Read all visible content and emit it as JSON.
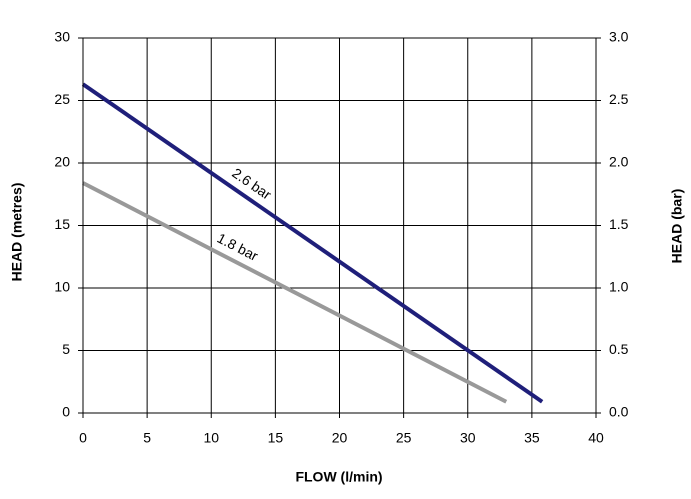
{
  "chart_data": {
    "type": "line",
    "xlabel": "FLOW (l/min)",
    "ylabel": "HEAD (metres)",
    "y2label": "HEAD (bar)",
    "xlim": [
      0,
      40
    ],
    "xticks": [
      0,
      5,
      10,
      15,
      20,
      25,
      30,
      35,
      40
    ],
    "ylim": [
      0,
      30
    ],
    "yticks": [
      0,
      5,
      10,
      15,
      20,
      25,
      30
    ],
    "y2lim": [
      0,
      3
    ],
    "y2ticks": [
      {
        "value": 0,
        "label": "0.0"
      },
      0.5,
      {
        "value": 1,
        "label": "1.0"
      },
      1.5,
      {
        "value": 2,
        "label": "2.0"
      },
      2.5,
      {
        "value": 3,
        "label": "3.0"
      }
    ],
    "grid": true,
    "series": [
      {
        "name": "2.6 bar",
        "color": "#1f1f7a",
        "x": [
          0,
          35.8
        ],
        "values": [
          26.3,
          0.9
        ]
      },
      {
        "name": "1.8 bar",
        "color": "#999999",
        "x": [
          0,
          33
        ],
        "values": [
          18.4,
          0.9
        ]
      }
    ]
  }
}
